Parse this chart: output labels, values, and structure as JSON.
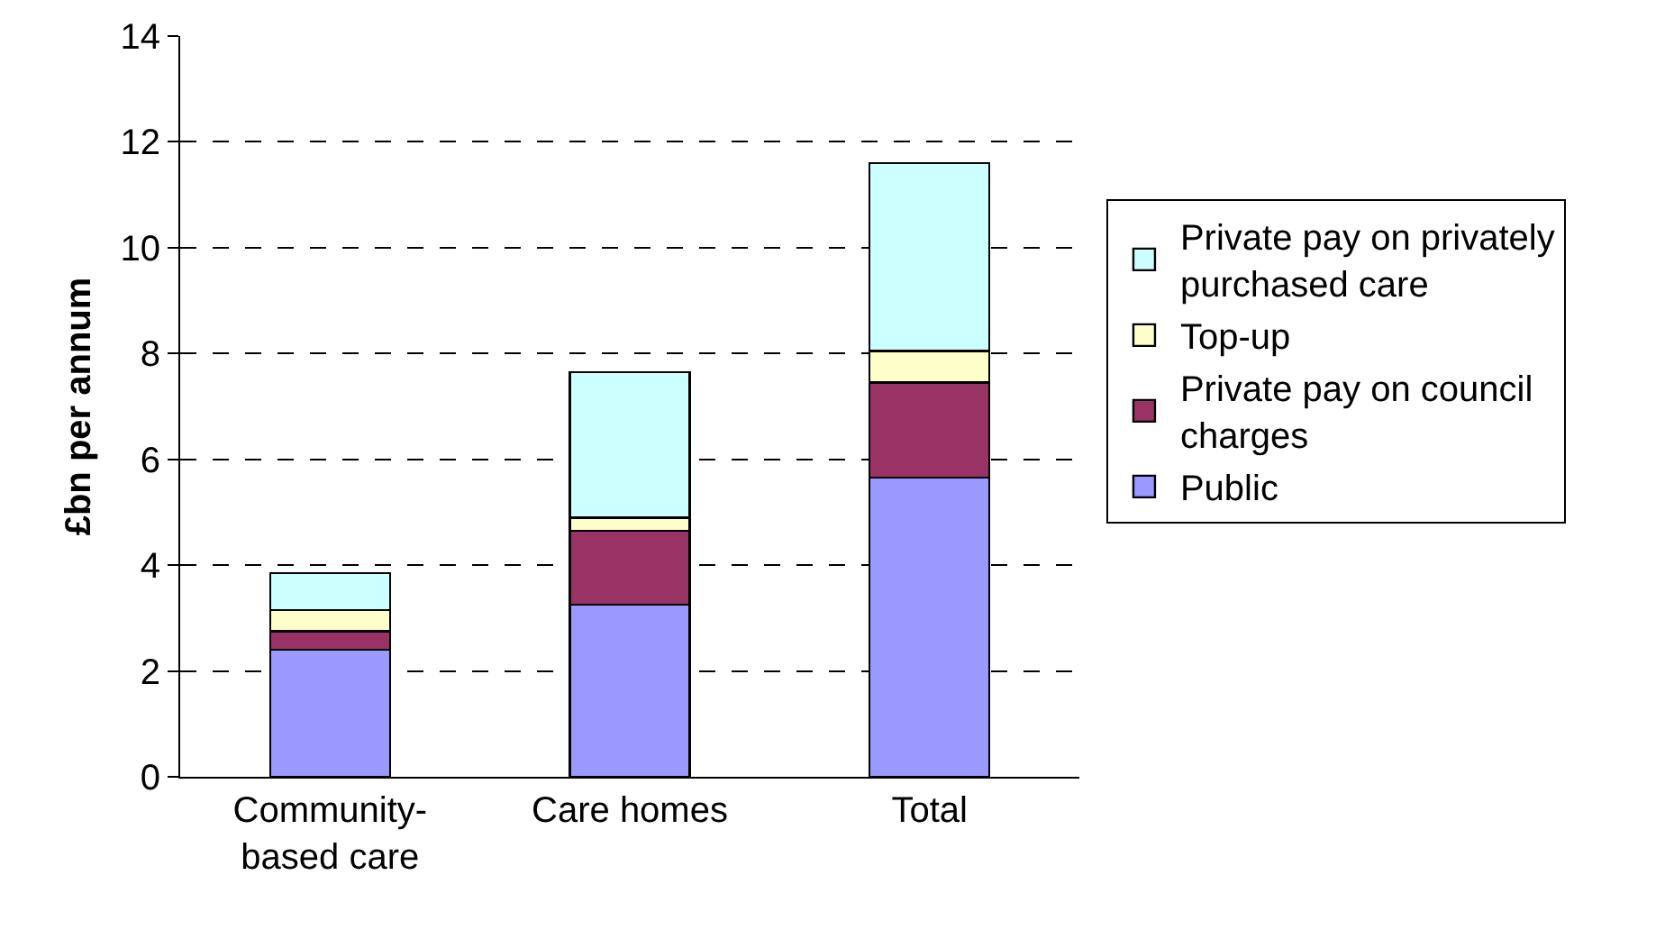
{
  "chart_data": {
    "type": "bar",
    "stacked": true,
    "ylabel": "£bn per annum",
    "categories": [
      "Community-based care",
      "Care homes",
      "Total"
    ],
    "series": [
      {
        "name": "Public",
        "color": "#9999ff",
        "values": [
          2.4,
          3.25,
          5.65
        ]
      },
      {
        "name": "Private pay on council charges",
        "color": "#993366",
        "values": [
          0.35,
          1.4,
          1.8
        ]
      },
      {
        "name": "Top-up",
        "color": "#ffffcc",
        "values": [
          0.4,
          0.25,
          0.6
        ]
      },
      {
        "name": "Private pay on privately purchased care",
        "color": "#ccffff",
        "values": [
          0.7,
          2.75,
          3.55
        ]
      }
    ],
    "ylim": [
      0,
      14
    ],
    "yticks": [
      0,
      2,
      4,
      6,
      8,
      10,
      12,
      14
    ],
    "grid": "y",
    "legend": "right"
  }
}
